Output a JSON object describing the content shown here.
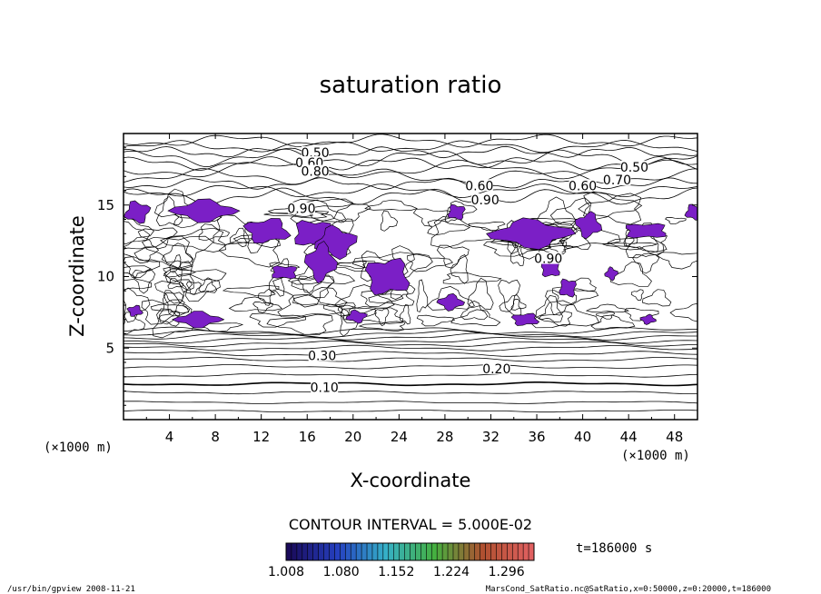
{
  "chart_data": {
    "type": "contour",
    "title": "saturation ratio",
    "xlabel": "X-coordinate",
    "ylabel": "Z-coordinate",
    "x_unit": "(×1000 m)",
    "z_unit": "(×1000 m)",
    "xlim": [
      0,
      50
    ],
    "ylim": [
      0,
      20
    ],
    "x_ticks": [
      "4",
      "8",
      "12",
      "16",
      "20",
      "24",
      "28",
      "32",
      "36",
      "40",
      "44",
      "48"
    ],
    "y_ticks": [
      "5",
      "10",
      "15"
    ],
    "contour_interval_label": "CONTOUR INTERVAL = 5.000E-02",
    "contour_labels": [
      {
        "text": "0.10",
        "x": 17.5,
        "z": 2.2
      },
      {
        "text": "0.20",
        "x": 32.5,
        "z": 3.5
      },
      {
        "text": "0.30",
        "x": 17.3,
        "z": 4.4
      },
      {
        "text": "0.50",
        "x": 16.7,
        "z": 18.6
      },
      {
        "text": "0.60",
        "x": 16.2,
        "z": 17.9
      },
      {
        "text": "0.80",
        "x": 16.7,
        "z": 17.3
      },
      {
        "text": "0.60",
        "x": 31.0,
        "z": 16.3
      },
      {
        "text": "0.90",
        "x": 31.5,
        "z": 15.3
      },
      {
        "text": "0.90",
        "x": 15.5,
        "z": 14.7
      },
      {
        "text": "0.60",
        "x": 40.0,
        "z": 16.3
      },
      {
        "text": "0.50",
        "x": 44.5,
        "z": 17.6
      },
      {
        "text": "0.70",
        "x": 43.0,
        "z": 16.7
      },
      {
        "text": "0.90",
        "x": 37.0,
        "z": 11.2
      }
    ],
    "shaded_regions_above": 1.0,
    "shade_color": "#7b1fc6",
    "colorbar": {
      "min": 1.008,
      "max": 1.332,
      "tick_labels": [
        "1.008",
        "1.080",
        "1.152",
        "1.224",
        "1.296"
      ],
      "colors": [
        "#1a0a5a",
        "#2540c0",
        "#35b0c8",
        "#45b040",
        "#b05030",
        "#e06060"
      ]
    },
    "time_label": "t=186000 s"
  },
  "footer": {
    "left": "/usr/bin/gpview   2008-11-21",
    "right": "MarsCond_SatRatio.nc@SatRatio,x=0:50000,z=0:20000,t=186000"
  }
}
